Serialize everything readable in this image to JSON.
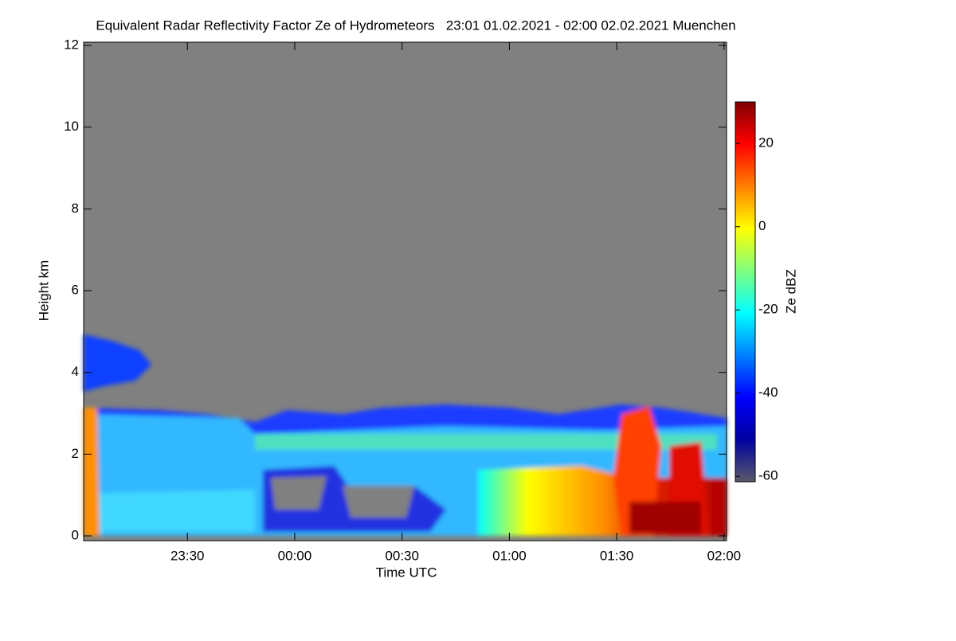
{
  "chart_data": {
    "type": "heatmap",
    "title": "Equivalent Radar Reflectivity Factor Ze of Hydrometeors   23:01 01.02.2021 - 02:00 02.02.2021 Muenchen",
    "xlabel": "Time UTC",
    "ylabel": "Height km",
    "colorbar_label": "Ze dBZ",
    "xlim": [
      -59,
      120.7
    ],
    "xticks": [
      {
        "value": -30,
        "label": "23:30"
      },
      {
        "value": 0,
        "label": "00:00"
      },
      {
        "value": 30,
        "label": "00:30"
      },
      {
        "value": 60,
        "label": "01:00"
      },
      {
        "value": 90,
        "label": "01:30"
      },
      {
        "value": 120,
        "label": "02:00"
      }
    ],
    "ylim": [
      0,
      12
    ],
    "yticks": [
      0,
      2,
      4,
      6,
      8,
      10,
      12
    ],
    "clim": [
      -61.3,
      30
    ],
    "cticks": [
      -60,
      -40,
      -20,
      0,
      20
    ],
    "colormap": [
      "#5a5a6a",
      "#0000a0",
      "#0000ff",
      "#0080ff",
      "#00ffff",
      "#80ff80",
      "#ffff00",
      "#ff8000",
      "#ff0000",
      "#800000"
    ]
  }
}
